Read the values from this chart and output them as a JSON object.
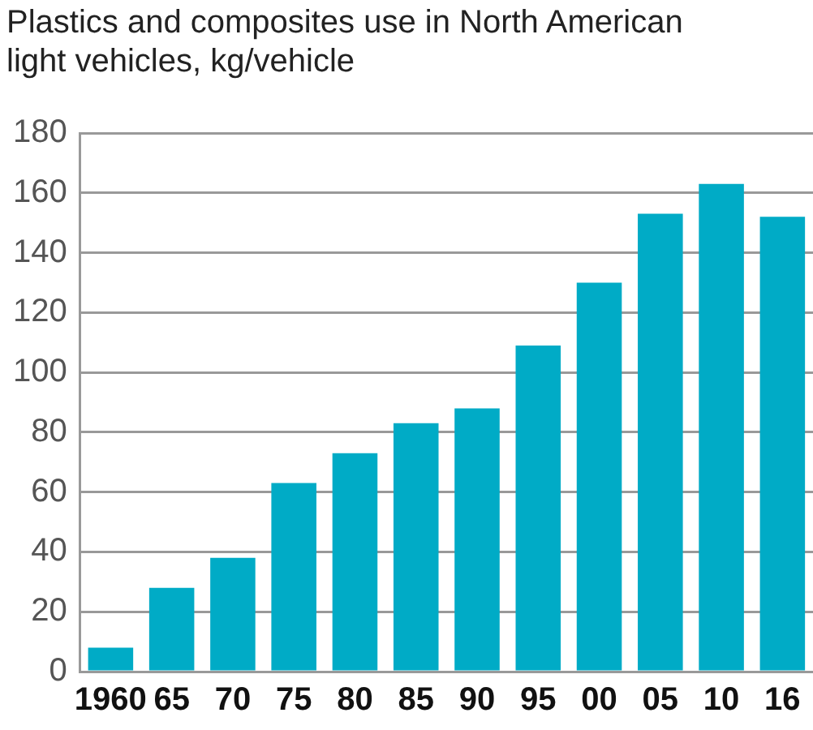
{
  "chart_data": {
    "type": "bar",
    "title": "Plastics and composites use in North American light vehicles, kg/vehicle",
    "categories": [
      "1960",
      "65",
      "70",
      "75",
      "80",
      "85",
      "90",
      "95",
      "00",
      "05",
      "10",
      "16"
    ],
    "values": [
      8,
      28,
      38,
      63,
      73,
      83,
      88,
      109,
      130,
      153,
      163,
      152
    ],
    "color": "#00abc6",
    "ylim": [
      0,
      180
    ],
    "yticks": [
      0,
      20,
      40,
      60,
      80,
      100,
      120,
      140,
      160,
      180
    ],
    "grid": "y"
  }
}
